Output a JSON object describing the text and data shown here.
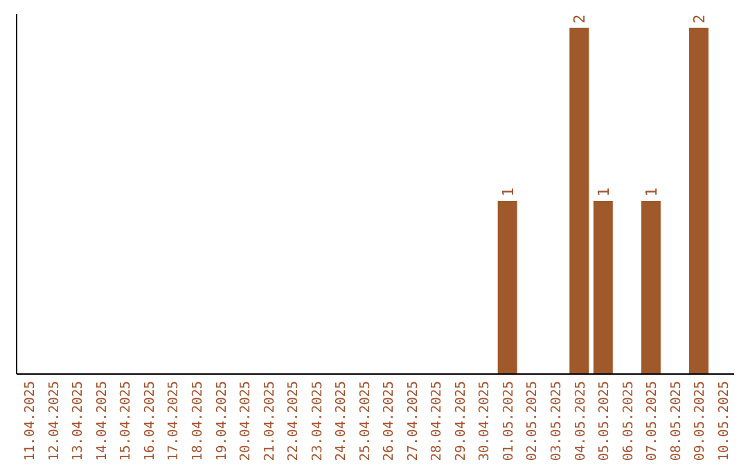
{
  "chart_data": {
    "type": "bar",
    "categories": [
      "11.04.2025",
      "12.04.2025",
      "13.04.2025",
      "14.04.2025",
      "15.04.2025",
      "16.04.2025",
      "17.04.2025",
      "18.04.2025",
      "19.04.2025",
      "20.04.2025",
      "21.04.2025",
      "22.04.2025",
      "23.04.2025",
      "24.04.2025",
      "25.04.2025",
      "26.04.2025",
      "27.04.2025",
      "28.04.2025",
      "29.04.2025",
      "30.04.2025",
      "01.05.2025",
      "02.05.2025",
      "03.05.2025",
      "04.05.2025",
      "05.05.2025",
      "06.05.2025",
      "07.05.2025",
      "08.05.2025",
      "09.05.2025",
      "10.05.2025"
    ],
    "values": [
      null,
      null,
      null,
      null,
      null,
      null,
      null,
      null,
      null,
      null,
      null,
      null,
      null,
      null,
      null,
      null,
      null,
      null,
      null,
      null,
      1,
      null,
      null,
      2,
      1,
      null,
      1,
      null,
      2,
      null
    ],
    "data_labels": true,
    "color": "#a0592b",
    "tick_labels": "x",
    "grid": false,
    "legend": false
  }
}
